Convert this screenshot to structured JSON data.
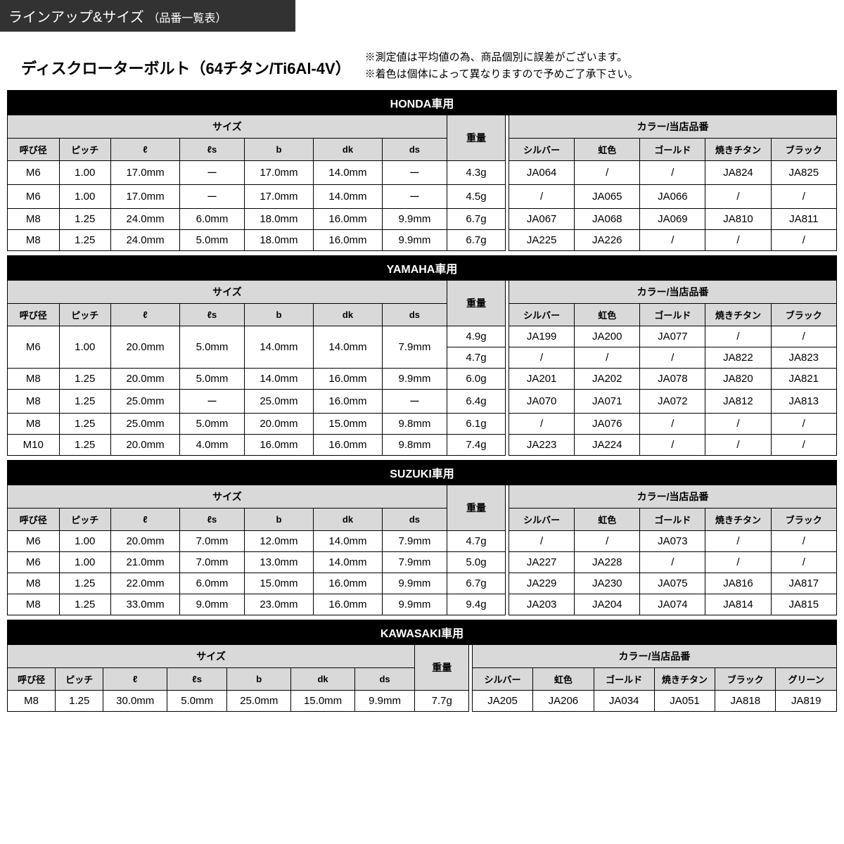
{
  "header": {
    "title": "ラインアップ&サイズ",
    "subtitle": "（品番一覧表）"
  },
  "main_title": "ディスクローターボルト（64チタン/Ti6Al-4V）",
  "notes": [
    "※測定値は平均値の為、商品個別に誤差がございます。",
    "※着色は個体によって異なりますので予めご了承下さい。"
  ],
  "common_headers": {
    "size": "サイズ",
    "weight": "重量",
    "color": "カラー/当店品番",
    "cols_size": [
      "呼び径",
      "ピッチ",
      "ℓ",
      "ℓs",
      "b",
      "dk",
      "ds"
    ],
    "cols_color5": [
      "シルバー",
      "虹色",
      "ゴールド",
      "焼きチタン",
      "ブラック"
    ],
    "cols_color6": [
      "シルバー",
      "虹色",
      "ゴールド",
      "焼きチタン",
      "ブラック",
      "グリーン"
    ]
  },
  "tables": [
    {
      "brand": "HONDA車用",
      "color_cols": 5,
      "rows": [
        {
          "size": [
            "M6",
            "1.00",
            "17.0mm",
            "ー",
            "17.0mm",
            "14.0mm",
            "ー"
          ],
          "weight": "4.3g",
          "colors": [
            "JA064",
            "/",
            "/",
            "JA824",
            "JA825"
          ]
        },
        {
          "size": [
            "M6",
            "1.00",
            "17.0mm",
            "ー",
            "17.0mm",
            "14.0mm",
            "ー"
          ],
          "weight": "4.5g",
          "colors": [
            "/",
            "JA065",
            "JA066",
            "/",
            "/"
          ]
        },
        {
          "size": [
            "M8",
            "1.25",
            "24.0mm",
            "6.0mm",
            "18.0mm",
            "16.0mm",
            "9.9mm"
          ],
          "weight": "6.7g",
          "colors": [
            "JA067",
            "JA068",
            "JA069",
            "JA810",
            "JA811"
          ]
        },
        {
          "size": [
            "M8",
            "1.25",
            "24.0mm",
            "5.0mm",
            "18.0mm",
            "16.0mm",
            "9.9mm"
          ],
          "weight": "6.7g",
          "colors": [
            "JA225",
            "JA226",
            "/",
            "/",
            "/"
          ]
        }
      ]
    },
    {
      "brand": "YAMAHA車用",
      "color_cols": 5,
      "merged_first": {
        "size": [
          "M6",
          "1.00",
          "20.0mm",
          "5.0mm",
          "14.0mm",
          "14.0mm",
          "7.9mm"
        ],
        "subrows": [
          {
            "weight": "4.9g",
            "colors": [
              "JA199",
              "JA200",
              "JA077",
              "/",
              "/"
            ]
          },
          {
            "weight": "4.7g",
            "colors": [
              "/",
              "/",
              "/",
              "JA822",
              "JA823"
            ]
          }
        ]
      },
      "rows": [
        {
          "size": [
            "M8",
            "1.25",
            "20.0mm",
            "5.0mm",
            "14.0mm",
            "16.0mm",
            "9.9mm"
          ],
          "weight": "6.0g",
          "colors": [
            "JA201",
            "JA202",
            "JA078",
            "JA820",
            "JA821"
          ]
        },
        {
          "size": [
            "M8",
            "1.25",
            "25.0mm",
            "ー",
            "25.0mm",
            "16.0mm",
            "ー"
          ],
          "weight": "6.4g",
          "colors": [
            "JA070",
            "JA071",
            "JA072",
            "JA812",
            "JA813"
          ]
        },
        {
          "size": [
            "M8",
            "1.25",
            "25.0mm",
            "5.0mm",
            "20.0mm",
            "15.0mm",
            "9.8mm"
          ],
          "weight": "6.1g",
          "colors": [
            "/",
            "JA076",
            "/",
            "/",
            "/"
          ]
        },
        {
          "size": [
            "M10",
            "1.25",
            "20.0mm",
            "4.0mm",
            "16.0mm",
            "16.0mm",
            "9.8mm"
          ],
          "weight": "7.4g",
          "colors": [
            "JA223",
            "JA224",
            "/",
            "/",
            "/"
          ]
        }
      ]
    },
    {
      "brand": "SUZUKI車用",
      "color_cols": 5,
      "rows": [
        {
          "size": [
            "M6",
            "1.00",
            "20.0mm",
            "7.0mm",
            "12.0mm",
            "14.0mm",
            "7.9mm"
          ],
          "weight": "4.7g",
          "colors": [
            "/",
            "/",
            "JA073",
            "/",
            "/"
          ]
        },
        {
          "size": [
            "M6",
            "1.00",
            "21.0mm",
            "7.0mm",
            "13.0mm",
            "14.0mm",
            "7.9mm"
          ],
          "weight": "5.0g",
          "colors": [
            "JA227",
            "JA228",
            "/",
            "/",
            "/"
          ]
        },
        {
          "size": [
            "M8",
            "1.25",
            "22.0mm",
            "6.0mm",
            "15.0mm",
            "16.0mm",
            "9.9mm"
          ],
          "weight": "6.7g",
          "colors": [
            "JA229",
            "JA230",
            "JA075",
            "JA816",
            "JA817"
          ]
        },
        {
          "size": [
            "M8",
            "1.25",
            "33.0mm",
            "9.0mm",
            "23.0mm",
            "16.0mm",
            "9.9mm"
          ],
          "weight": "9.4g",
          "colors": [
            "JA203",
            "JA204",
            "JA074",
            "JA814",
            "JA815"
          ]
        }
      ]
    },
    {
      "brand": "KAWASAKI車用",
      "color_cols": 6,
      "rows": [
        {
          "size": [
            "M8",
            "1.25",
            "30.0mm",
            "5.0mm",
            "25.0mm",
            "15.0mm",
            "9.9mm"
          ],
          "weight": "7.7g",
          "colors": [
            "JA205",
            "JA206",
            "JA034",
            "JA051",
            "JA818",
            "JA819"
          ]
        }
      ]
    }
  ]
}
